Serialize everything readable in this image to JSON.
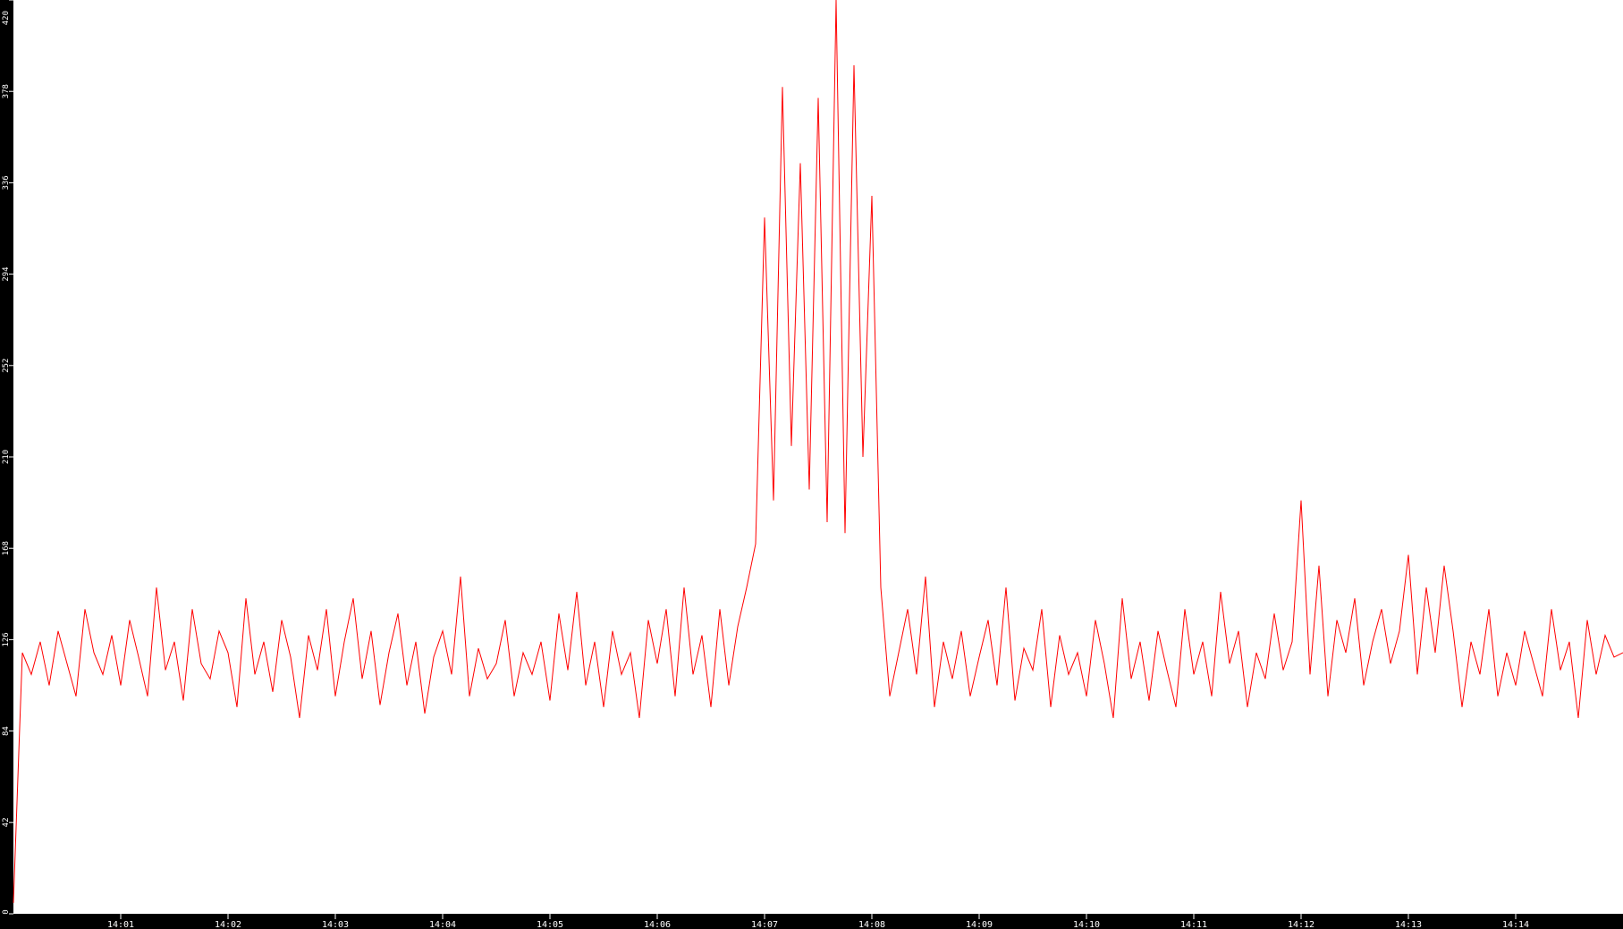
{
  "chart_data": {
    "type": "line",
    "title": "",
    "xlabel": "",
    "ylabel": "",
    "x_range": [
      "14:00:00",
      "14:15:00"
    ],
    "x_step_seconds": 5,
    "ylim": [
      0,
      420
    ],
    "y_ticks": [
      "0",
      "42",
      "84",
      "126",
      "168",
      "210",
      "252",
      "294",
      "336",
      "378",
      "420"
    ],
    "x_ticks": [
      "14:01",
      "14:02",
      "14:03",
      "14:04",
      "14:05",
      "14:06",
      "14:07",
      "14:08",
      "14:09",
      "14:10",
      "14:11",
      "14:12",
      "14:13",
      "14:14"
    ],
    "grid": false,
    "colors": {
      "line": "#ff0000",
      "background": "#ffffff",
      "axis": "#000000",
      "text": "#ffffff"
    },
    "series": [
      {
        "values": [
          5,
          120,
          110,
          125,
          105,
          130,
          115,
          100,
          140,
          120,
          110,
          128,
          105,
          135,
          118,
          100,
          150,
          112,
          125,
          98,
          140,
          115,
          108,
          130,
          120,
          95,
          145,
          110,
          125,
          102,
          135,
          118,
          90,
          128,
          112,
          140,
          100,
          125,
          145,
          108,
          130,
          96,
          120,
          138,
          105,
          125,
          92,
          118,
          130,
          110,
          155,
          100,
          122,
          108,
          115,
          135,
          100,
          120,
          110,
          125,
          98,
          138,
          112,
          148,
          105,
          125,
          95,
          130,
          110,
          120,
          90,
          135,
          115,
          140,
          100,
          150,
          110,
          128,
          95,
          140,
          105,
          132,
          150,
          170,
          320,
          190,
          380,
          215,
          345,
          195,
          375,
          180,
          420,
          175,
          390,
          210,
          330,
          150,
          100,
          120,
          140,
          110,
          155,
          95,
          125,
          108,
          130,
          100,
          118,
          135,
          105,
          150,
          98,
          122,
          112,
          140,
          95,
          128,
          110,
          120,
          100,
          135,
          115,
          90,
          145,
          108,
          125,
          98,
          130,
          112,
          95,
          140,
          110,
          125,
          100,
          148,
          115,
          130,
          95,
          120,
          108,
          138,
          112,
          125,
          190,
          110,
          160,
          100,
          135,
          120,
          145,
          105,
          125,
          140,
          115,
          130,
          165,
          110,
          150,
          120,
          160,
          130,
          95,
          125,
          110,
          140,
          100,
          120,
          105,
          130,
          115,
          100,
          140,
          112,
          125,
          90,
          135,
          110,
          128,
          118,
          120
        ]
      }
    ]
  }
}
